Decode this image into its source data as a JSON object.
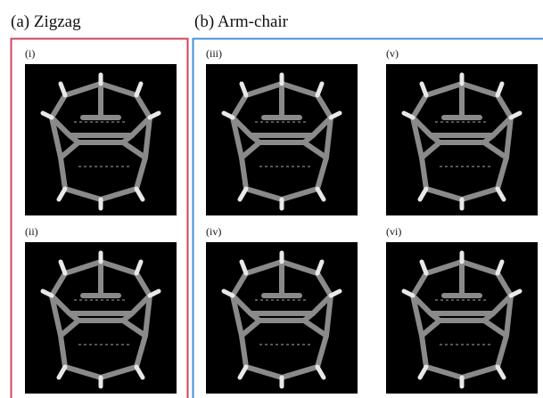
{
  "groups": [
    {
      "title": "(a) Zigzag",
      "panels": [
        "(i)",
        "(ii)"
      ]
    },
    {
      "title": "(b) Arm-chair",
      "panels": [
        "(iii)",
        "(iv)",
        "(v)",
        "(vi)"
      ]
    }
  ]
}
